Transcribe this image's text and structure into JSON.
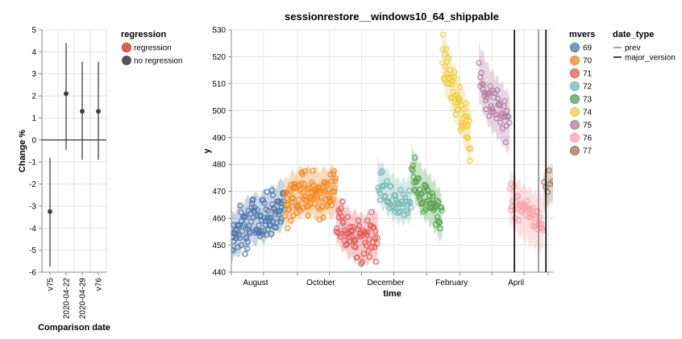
{
  "chart_data": [
    {
      "type": "scatter",
      "xlabel": "Comparison date",
      "ylabel": "Change %",
      "ylim": [
        -6,
        5
      ],
      "y_ticks": [
        5,
        4,
        3,
        2,
        1,
        0,
        -1,
        -2,
        -3,
        -4,
        -5,
        -6
      ],
      "grid": true,
      "categories": [
        "v75",
        "2020-04-22",
        "2020-04-29",
        "v76"
      ],
      "points": [
        {
          "category": "v75",
          "value": -3.25,
          "low": -5.75,
          "high": -0.8,
          "regression": "no regression"
        },
        {
          "category": "2020-04-22",
          "value": 2.1,
          "low": -0.45,
          "high": 4.4,
          "regression": "no regression"
        },
        {
          "category": "2020-04-29",
          "value": 1.3,
          "low": -0.9,
          "high": 3.55,
          "regression": "no regression"
        },
        {
          "category": "v76",
          "value": 1.3,
          "low": -0.9,
          "high": 3.55,
          "regression": "no regression"
        }
      ],
      "legend": {
        "title": "regression",
        "items": [
          {
            "label": "regression",
            "color": "#ff4040"
          },
          {
            "label": "no regression",
            "color": "#404040"
          }
        ]
      }
    },
    {
      "type": "scatter",
      "title": "sessionrestore__windows10_64_shippable",
      "xlabel": "time",
      "ylabel": "y",
      "ylim": [
        440,
        530
      ],
      "y_ticks": [
        530,
        520,
        510,
        500,
        490,
        480,
        470,
        460,
        450,
        440
      ],
      "x_ticks": [
        "August",
        "October",
        "December",
        "February",
        "April"
      ],
      "grid": true,
      "series": [
        {
          "name": "69",
          "color": "#4c78a8",
          "start": 0.0,
          "end": 0.166,
          "base": [
            453,
            459,
            461,
            466
          ],
          "spread": 5,
          "count": 110,
          "band": 9
        },
        {
          "name": "70",
          "color": "#f58518",
          "start": 0.166,
          "end": 0.326,
          "base": [
            466,
            470,
            469,
            470
          ],
          "spread": 5,
          "count": 100,
          "band": 9
        },
        {
          "name": "71",
          "color": "#e45756",
          "start": 0.326,
          "end": 0.455,
          "base": [
            460,
            454,
            452,
            454
          ],
          "spread": 5,
          "count": 70,
          "band": 9
        },
        {
          "name": "72",
          "color": "#72b7b2",
          "start": 0.455,
          "end": 0.56,
          "base": [
            474,
            469,
            466,
            467
          ],
          "spread": 4,
          "count": 45,
          "band": 8
        },
        {
          "name": "73",
          "color": "#54a24b",
          "start": 0.56,
          "end": 0.655,
          "base": [
            478,
            470,
            466,
            460
          ],
          "spread": 4,
          "count": 55,
          "band": 9
        },
        {
          "name": "74",
          "color": "#eeca3b",
          "start": 0.655,
          "end": 0.745,
          "base": [
            520,
            510,
            500,
            490
          ],
          "spread": 5,
          "count": 55,
          "band": 10
        },
        {
          "name": "75",
          "color": "#b279a2",
          "start": 0.77,
          "end": 0.865,
          "base": [
            514,
            505,
            500,
            495
          ],
          "spread": 5,
          "count": 45,
          "band": 11
        },
        {
          "name": "76",
          "color": "#ff9da6",
          "start": 0.865,
          "end": 0.97,
          "base": [
            468,
            463,
            460,
            458
          ],
          "spread": 4,
          "count": 45,
          "band": 10
        },
        {
          "name": "77",
          "color": "#9d755d",
          "start": 0.97,
          "end": 1.0,
          "base": [
            470,
            473
          ],
          "spread": 4,
          "count": 6,
          "band": 7
        }
      ],
      "reference_lines": [
        {
          "type": "major_version",
          "at": 0.88
        },
        {
          "type": "prev",
          "at": 0.955
        },
        {
          "type": "major_version",
          "at": 0.978
        }
      ],
      "legend_mvers": {
        "title": "mvers",
        "items": [
          "69",
          "70",
          "71",
          "72",
          "73",
          "74",
          "75",
          "76",
          "77"
        ]
      },
      "legend_date_type": {
        "title": "date_type",
        "items": [
          {
            "label": "prev",
            "color": "#888888"
          },
          {
            "label": "major_version",
            "color": "#000000"
          }
        ]
      }
    }
  ]
}
